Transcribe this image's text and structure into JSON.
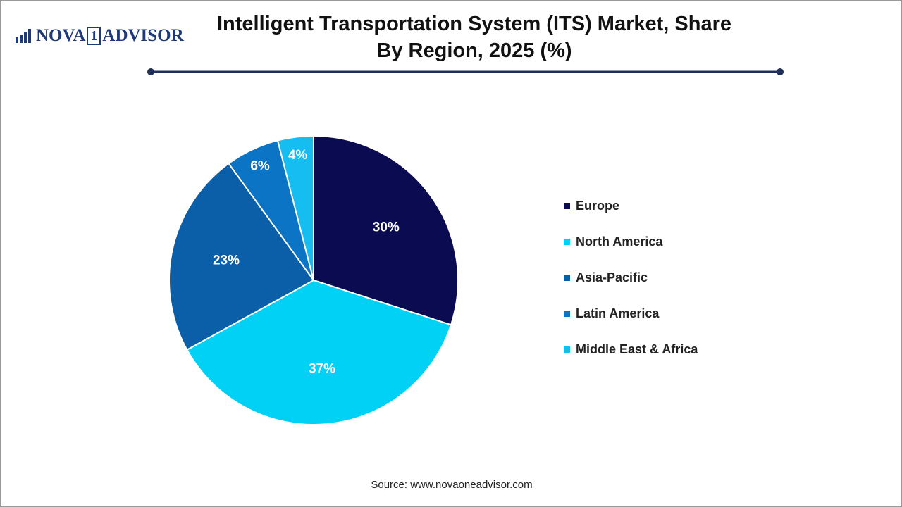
{
  "logo": {
    "left": "NOVA",
    "mark": "1",
    "right": "ADVISOR"
  },
  "chart_data": {
    "type": "pie",
    "title": "Intelligent Transportation System (ITS) Market, Share By Region, 2025 (%)",
    "categories": [
      "Europe",
      "North America",
      "Asia-Pacific",
      "Latin America",
      "Middle East & Africa"
    ],
    "values": [
      30,
      37,
      23,
      6,
      4
    ],
    "value_labels": [
      "30%",
      "37%",
      "23%",
      "6%",
      "4%"
    ],
    "colors": [
      "#0b0b52",
      "#00d1f5",
      "#0a5fa8",
      "#0b74c4",
      "#16bdf0"
    ],
    "legend": "right",
    "source": "Source: www.novaoneadvisor.com"
  }
}
